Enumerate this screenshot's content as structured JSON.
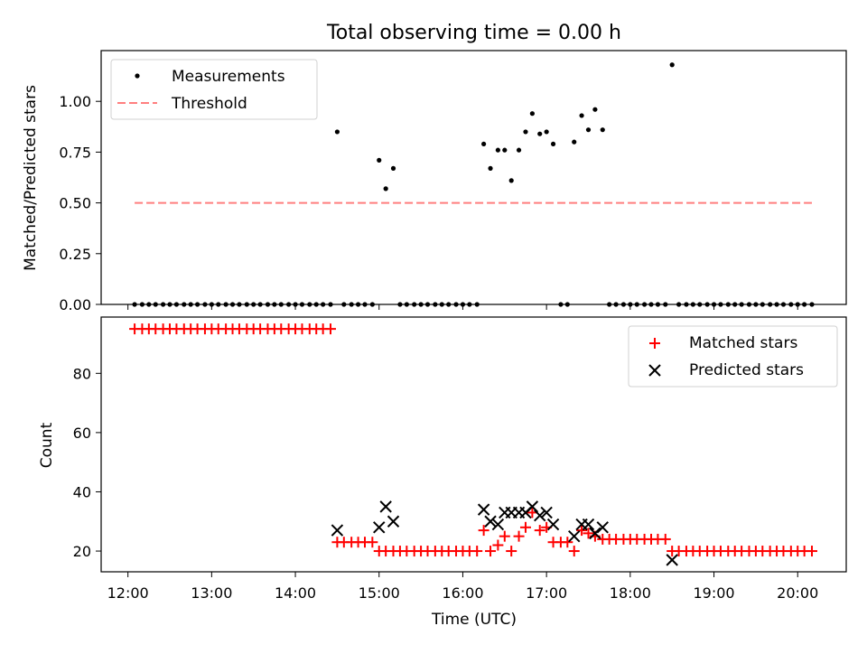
{
  "chart_data": [
    {
      "type": "scatter",
      "title": "Total observing time = 0.00 h",
      "xlabel": "",
      "ylabel": "Matched/Predicted stars",
      "ylim": [
        0,
        1.25
      ],
      "yticks": [
        "0.00",
        "0.25",
        "0.50",
        "0.75",
        "1.00"
      ],
      "legend_position": "top-left",
      "grid": false,
      "series": [
        {
          "name": "Measurements",
          "kind": "scatter",
          "color": "#000000",
          "x": [
            12.08,
            12.17,
            12.25,
            12.33,
            12.42,
            12.5,
            12.58,
            12.67,
            12.75,
            12.83,
            12.92,
            13.0,
            13.08,
            13.17,
            13.25,
            13.33,
            13.42,
            13.5,
            13.58,
            13.67,
            13.75,
            13.83,
            13.92,
            14.0,
            14.08,
            14.17,
            14.25,
            14.33,
            14.42,
            14.5,
            14.58,
            14.67,
            14.75,
            14.83,
            14.92,
            15.0,
            15.08,
            15.17,
            15.25,
            15.33,
            15.42,
            15.5,
            15.58,
            15.67,
            15.75,
            15.83,
            15.92,
            16.0,
            16.08,
            16.17,
            16.25,
            16.33,
            16.42,
            16.5,
            16.58,
            16.67,
            16.75,
            16.83,
            16.92,
            17.0,
            17.08,
            17.17,
            17.25,
            17.33,
            17.42,
            17.5,
            17.58,
            17.67,
            17.75,
            17.83,
            17.92,
            18.0,
            18.08,
            18.17,
            18.25,
            18.33,
            18.42,
            18.5,
            18.58,
            18.67,
            18.75,
            18.83,
            18.92,
            19.0,
            19.08,
            19.17,
            19.25,
            19.33,
            19.42,
            19.5,
            19.58,
            19.67,
            19.75,
            19.83,
            19.92,
            20.0,
            20.08,
            20.17
          ],
          "y": [
            0,
            0,
            0,
            0,
            0,
            0,
            0,
            0,
            0,
            0,
            0,
            0,
            0,
            0,
            0,
            0,
            0,
            0,
            0,
            0,
            0,
            0,
            0,
            0,
            0,
            0,
            0,
            0,
            0,
            0.85,
            0,
            0,
            0,
            0,
            0,
            0.71,
            0.57,
            0.67,
            0,
            0,
            0,
            0,
            0,
            0,
            0,
            0,
            0,
            0,
            0,
            0,
            0.79,
            0.67,
            0.76,
            0.76,
            0.61,
            0.76,
            0.85,
            0.94,
            0.84,
            0.85,
            0.79,
            0,
            0,
            0.8,
            0.93,
            0.86,
            0.96,
            0.86,
            0,
            0,
            0,
            0,
            0,
            0,
            0,
            0,
            0,
            1.18,
            0,
            0,
            0,
            0,
            0,
            0,
            0,
            0,
            0,
            0,
            0,
            0,
            0,
            0,
            0,
            0,
            0,
            0,
            0,
            0
          ]
        },
        {
          "name": "Threshold",
          "kind": "line",
          "color": "#ff7f7f",
          "x": [
            12.08,
            20.17
          ],
          "y": [
            0.5,
            0.5
          ]
        }
      ]
    },
    {
      "type": "scatter",
      "title": "",
      "xlabel": "Time (UTC)",
      "ylabel": "Count",
      "ylim": [
        13,
        99
      ],
      "xlim": [
        11.68,
        20.58
      ],
      "yticks": [
        "20",
        "40",
        "60",
        "80"
      ],
      "xticks": [
        "12:00",
        "13:00",
        "14:00",
        "15:00",
        "16:00",
        "17:00",
        "18:00",
        "19:00",
        "20:00"
      ],
      "legend_position": "top-right",
      "grid": false,
      "series": [
        {
          "name": "Matched stars",
          "kind": "plus",
          "color": "#ff0000",
          "x": [
            12.08,
            12.17,
            12.25,
            12.33,
            12.42,
            12.5,
            12.58,
            12.67,
            12.75,
            12.83,
            12.92,
            13.0,
            13.08,
            13.17,
            13.25,
            13.33,
            13.42,
            13.5,
            13.58,
            13.67,
            13.75,
            13.83,
            13.92,
            14.0,
            14.08,
            14.17,
            14.25,
            14.33,
            14.42,
            14.5,
            14.58,
            14.67,
            14.75,
            14.83,
            14.92,
            15.0,
            15.08,
            15.17,
            15.25,
            15.33,
            15.42,
            15.5,
            15.58,
            15.67,
            15.75,
            15.83,
            15.92,
            16.0,
            16.08,
            16.17,
            16.25,
            16.33,
            16.42,
            16.5,
            16.58,
            16.67,
            16.75,
            16.83,
            16.92,
            17.0,
            17.08,
            17.17,
            17.25,
            17.33,
            17.42,
            17.5,
            17.58,
            17.67,
            17.75,
            17.83,
            17.92,
            18.0,
            18.08,
            18.17,
            18.25,
            18.33,
            18.42,
            18.5,
            18.58,
            18.67,
            18.75,
            18.83,
            18.92,
            19.0,
            19.08,
            19.17,
            19.25,
            19.33,
            19.42,
            19.5,
            19.58,
            19.67,
            19.75,
            19.83,
            19.92,
            20.0,
            20.08,
            20.17
          ],
          "y": [
            95,
            95,
            95,
            95,
            95,
            95,
            95,
            95,
            95,
            95,
            95,
            95,
            95,
            95,
            95,
            95,
            95,
            95,
            95,
            95,
            95,
            95,
            95,
            95,
            95,
            95,
            95,
            95,
            95,
            23,
            23,
            23,
            23,
            23,
            23,
            20,
            20,
            20,
            20,
            20,
            20,
            20,
            20,
            20,
            20,
            20,
            20,
            20,
            20,
            20,
            27,
            20,
            22,
            25,
            20,
            25,
            28,
            33,
            27,
            28,
            23,
            23,
            23,
            20,
            27,
            26,
            25,
            24,
            24,
            24,
            24,
            24,
            24,
            24,
            24,
            24,
            24,
            20,
            20,
            20,
            20,
            20,
            20,
            20,
            20,
            20,
            20,
            20,
            20,
            20,
            20,
            20,
            20,
            20,
            20,
            20,
            20,
            20
          ]
        },
        {
          "name": "Predicted stars",
          "kind": "x",
          "color": "#000000",
          "x": [
            14.5,
            15.0,
            15.08,
            15.17,
            16.25,
            16.33,
            16.42,
            16.5,
            16.58,
            16.67,
            16.75,
            16.83,
            16.92,
            17.0,
            17.08,
            17.33,
            17.42,
            17.5,
            17.58,
            17.67,
            18.5
          ],
          "y": [
            27,
            28,
            35,
            30,
            34,
            30,
            29,
            33,
            33,
            33,
            33,
            35,
            32,
            33,
            29,
            25,
            29,
            29,
            26,
            28,
            17
          ]
        }
      ]
    }
  ]
}
